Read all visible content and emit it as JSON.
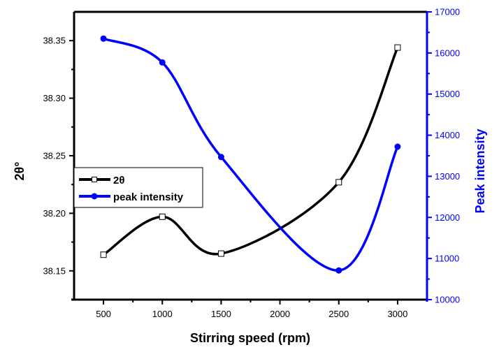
{
  "chart_data": {
    "type": "line",
    "title": "",
    "xlabel": "Stirring speed (rpm)",
    "ylabel": "2θ°",
    "y2label": "Peak intensity",
    "xlim": [
      250,
      3250
    ],
    "ylim": [
      38.125,
      38.375
    ],
    "y2lim": [
      10000,
      17000
    ],
    "x_ticks": [
      500,
      1000,
      1500,
      2000,
      2500,
      3000
    ],
    "x_tick_labels": [
      "500",
      "1000",
      "1500",
      "2000",
      "2500",
      "3000"
    ],
    "y_ticks": [
      38.15,
      38.2,
      38.25,
      38.3,
      38.35
    ],
    "y_tick_labels": [
      "38.15",
      "38.20",
      "38.25",
      "38.30",
      "38.35"
    ],
    "y2_ticks": [
      10000,
      11000,
      12000,
      13000,
      14000,
      15000,
      16000,
      17000
    ],
    "y2_tick_labels": [
      "10000",
      "11000",
      "12000",
      "13000",
      "14000",
      "15000",
      "16000",
      "17000"
    ],
    "grid": false,
    "legend": {
      "placement": "middle-left"
    },
    "series": [
      {
        "name": "2θ",
        "axis": "left",
        "color": "#000000",
        "marker": "open-square",
        "smooth": true,
        "x": [
          500,
          1000,
          1500,
          2500,
          3000
        ],
        "values": [
          38.164,
          38.197,
          38.165,
          38.227,
          38.344
        ]
      },
      {
        "name": "peak intensity",
        "axis": "right",
        "color": "#0000ff",
        "marker": "filled-circle",
        "smooth": true,
        "x": [
          500,
          1000,
          1500,
          2500,
          3000
        ],
        "values": [
          16350,
          15770,
          13470,
          10710,
          13720
        ]
      }
    ]
  }
}
